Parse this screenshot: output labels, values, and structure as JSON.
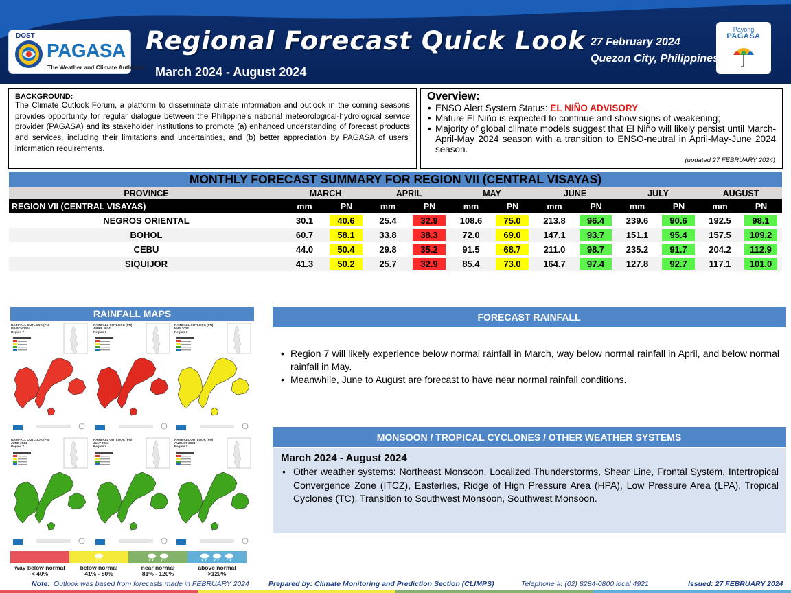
{
  "header": {
    "logo_dost": "DOST",
    "logo_name": "PAGASA",
    "logo_tagline": "The Weather and Climate Authority",
    "title": "Regional Forecast Quick Look",
    "period": "March 2024 - August 2024",
    "date": "27 February 2024",
    "place": "Quezon City, Philippines",
    "payong_line1": "Payong",
    "payong_line2": "PAGASA"
  },
  "background": {
    "heading": "BACKGROUND:",
    "text": "The Climate Outlook Forum, a platform to disseminate climate information and outlook in the coming seasons provides opportunity for regular dialogue between the Philippine’s national meteorological-hydrological service provider (PAGASA) and its stakeholder institutions to promote (a) enhanced understanding of forecast products and services, including their limitations and uncertainties, and (b) better appreciation by PAGASA of users’ information requirements."
  },
  "overview": {
    "heading": "Overview:",
    "enso_label": "ENSO Alert System Status: ",
    "enso_status": "EL NIÑO ADVISORY",
    "item2": "Mature El Niño is expected to continue and show signs of weakening;",
    "item3": "Majority of global climate models suggest that El Niño will likely persist until March-April-May 2024 season with a transition to ENSO-neutral in April-May-June 2024 season.",
    "updated": "(updated 27 FEBRUARY 2024)"
  },
  "table": {
    "title": "MONTHLY FORECAST SUMMARY FOR REGION VII (CENTRAL VISAYAS)",
    "province_header": "PROVINCE",
    "region_label": "REGION VII (CENTRAL VISAYAS)",
    "mm_label": "mm",
    "pn_label": "PN",
    "months": [
      "MARCH",
      "APRIL",
      "MAY",
      "JUNE",
      "JULY",
      "AUGUST"
    ],
    "rows": [
      {
        "province": "NEGROS ORIENTAL",
        "values": [
          [
            "30.1",
            "40.6"
          ],
          [
            "25.4",
            "32.9"
          ],
          [
            "108.6",
            "75.0"
          ],
          [
            "213.8",
            "96.4"
          ],
          [
            "239.6",
            "90.6"
          ],
          [
            "192.5",
            "98.1"
          ]
        ]
      },
      {
        "province": "BOHOL",
        "values": [
          [
            "60.7",
            "58.1"
          ],
          [
            "33.8",
            "38.3"
          ],
          [
            "72.0",
            "69.0"
          ],
          [
            "147.1",
            "93.7"
          ],
          [
            "151.1",
            "95.4"
          ],
          [
            "157.5",
            "109.2"
          ]
        ]
      },
      {
        "province": "CEBU",
        "values": [
          [
            "44.0",
            "50.4"
          ],
          [
            "29.8",
            "35.2"
          ],
          [
            "91.5",
            "68.7"
          ],
          [
            "211.0",
            "98.7"
          ],
          [
            "235.2",
            "91.7"
          ],
          [
            "204.2",
            "112.9"
          ]
        ]
      },
      {
        "province": "SIQUIJOR",
        "values": [
          [
            "41.3",
            "50.2"
          ],
          [
            "25.7",
            "32.9"
          ],
          [
            "85.4",
            "73.0"
          ],
          [
            "164.7",
            "97.4"
          ],
          [
            "127.8",
            "92.7"
          ],
          [
            "117.1",
            "101.0"
          ]
        ]
      }
    ],
    "category_colors": {
      "way_below_normal": "#ff2b2b",
      "below_normal": "#ffff00",
      "near_normal": "#5cf24c",
      "above_normal": "#4aa8e8"
    }
  },
  "maps": {
    "title": "RAINFALL MAPS",
    "panels": [
      {
        "title": "RAINFALL OUTLOOK (PN)",
        "month": "MARCH 2024",
        "region": "Region 7",
        "color": "#e8362a"
      },
      {
        "title": "RAINFALL OUTLOOK (PN)",
        "month": "APRIL 2024",
        "region": "Region 7",
        "color": "#e02a20"
      },
      {
        "title": "RAINFALL OUTLOOK (PN)",
        "month": "MAY 2024",
        "region": "Region 7",
        "color": "#f2e81a"
      },
      {
        "title": "RAINFALL OUTLOOK (PN)",
        "month": "JUNE 2024",
        "region": "Region 7",
        "color": "#3ea51c"
      },
      {
        "title": "RAINFALL OUTLOOK (PN)",
        "month": "JULY 2024",
        "region": "Region 7",
        "color": "#3ea51c"
      },
      {
        "title": "RAINFALL OUTLOOK (PN)",
        "month": "AUGUST 2024",
        "region": "Region 7",
        "color": "#3ea51c"
      }
    ],
    "legend": [
      {
        "label": "way below normal",
        "range": "< 40%",
        "color": "#e8535a"
      },
      {
        "label": "below normal",
        "range": "41% - 80%",
        "color": "#f5e93a"
      },
      {
        "label": "near normal",
        "range": "81% - 120%",
        "color": "#83b26a"
      },
      {
        "label": "above normal",
        "range": ">120%",
        "color": "#62b0d8"
      }
    ]
  },
  "forecast_rainfall": {
    "title": "FORECAST RAINFALL",
    "items": [
      "Region 7 will likely experience below normal rainfall in March, way below normal rainfall in April, and below normal rainfall in May.",
      "Meanwhile, June to August are forecast to have near normal rainfall conditions."
    ]
  },
  "monsoon": {
    "title": "MONSOON  / TROPICAL CYCLONES / OTHER WEATHER SYSTEMS",
    "period": "March 2024 - August 2024",
    "items": [
      "Other weather systems: Northeast Monsoon, Localized Thunderstorms, Shear Line, Frontal System, Intertropical Convergence Zone (ITCZ), Easterlies, Ridge of High Pressure Area (HPA), Low Pressure Area (LPA), Tropical Cyclones (TC), Transition to Southwest Monsoon, Southwest Monsoon."
    ]
  },
  "footer": {
    "note_label": "Note:",
    "note_text": "Outlook was based from forecasts made in FEBRUARY 2024",
    "prepared_label": "Prepared by: Climate Monitoring and Prediction Section (CLIMPS)",
    "phone": "Telephone #: (02) 8284-0800 local 4921",
    "issued": "Issued: 27 FEBRUARY 2024"
  }
}
